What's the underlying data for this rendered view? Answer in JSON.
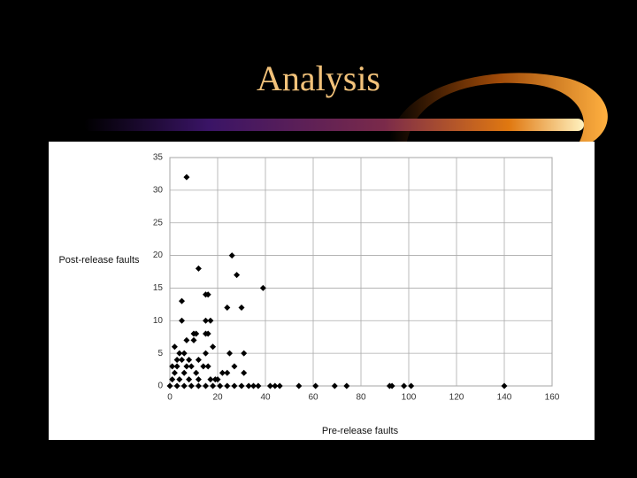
{
  "title": "Analysis",
  "chart_data": {
    "type": "scatter",
    "x_label": "Pre-release faults",
    "y_label": "Post-release faults",
    "x": [
      7,
      26,
      12,
      28,
      15,
      16,
      5,
      39,
      24,
      30,
      5,
      15,
      17,
      10,
      11,
      15,
      16,
      7,
      10,
      2,
      18,
      4,
      6,
      15,
      25,
      31,
      3,
      5,
      8,
      12,
      1,
      3,
      7,
      9,
      14,
      16,
      27,
      2,
      6,
      11,
      22,
      24,
      31,
      1,
      4,
      8,
      12,
      17,
      19,
      20,
      0,
      3,
      6,
      9,
      12,
      15,
      18,
      21,
      24,
      27,
      30,
      33,
      35,
      37,
      42,
      44,
      46,
      54,
      61,
      69,
      74,
      92,
      93,
      98,
      101,
      140
    ],
    "values": [
      32,
      20,
      18,
      17,
      14,
      14,
      13,
      15,
      12,
      12,
      10,
      10,
      10,
      8,
      8,
      8,
      8,
      7,
      7,
      6,
      6,
      5,
      5,
      5,
      5,
      5,
      4,
      4,
      4,
      4,
      3,
      3,
      3,
      3,
      3,
      3,
      3,
      2,
      2,
      2,
      2,
      2,
      2,
      1,
      1,
      1,
      1,
      1,
      1,
      1,
      0,
      0,
      0,
      0,
      0,
      0,
      0,
      0,
      0,
      0,
      0,
      0,
      0,
      0,
      0,
      0,
      0,
      0,
      0,
      0,
      0,
      0,
      0,
      0,
      0,
      0
    ],
    "color": "#000000",
    "xlim": [
      0,
      160
    ],
    "ylim": [
      0,
      35
    ],
    "xticks": [
      0,
      20,
      40,
      60,
      80,
      100,
      120,
      140,
      160
    ],
    "yticks": [
      0,
      5,
      10,
      15,
      20,
      25,
      30,
      35
    ],
    "grid": true
  }
}
